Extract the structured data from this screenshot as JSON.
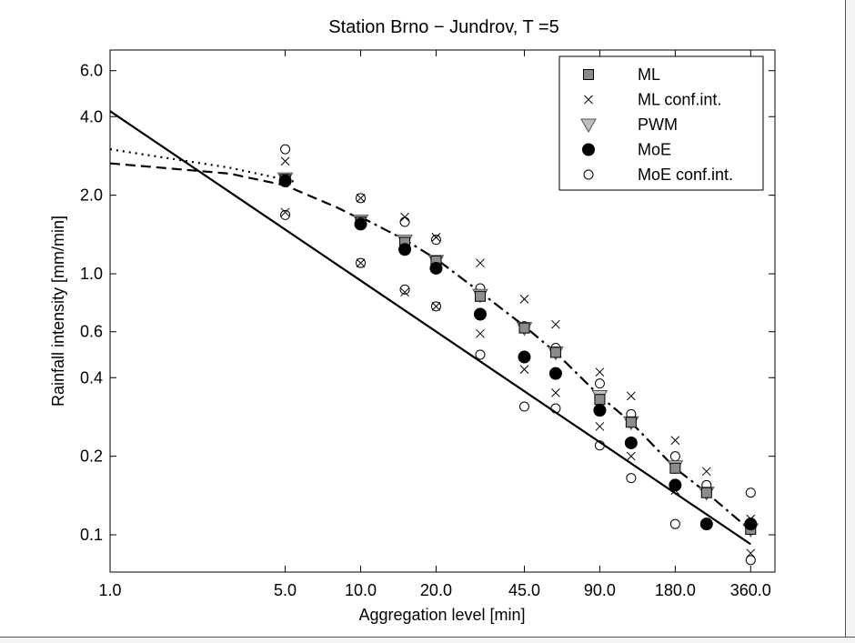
{
  "chart_data": {
    "type": "scatter",
    "title": "Station Brno − Jundrov,  T =5",
    "xlabel": "Aggregation level [min]",
    "ylabel": "Rainfall intensity [mm/min]",
    "x_scale": "log",
    "y_scale": "log",
    "xlim": [
      1.0,
      450.0
    ],
    "ylim": [
      0.072,
      7.2
    ],
    "x_ticks": [
      1,
      5,
      10,
      20,
      45,
      90,
      180,
      360
    ],
    "x_tick_labels": [
      "1.0",
      "5.0",
      "10.0",
      "20.0",
      "45.0",
      "90.0",
      "180.0",
      "360.0"
    ],
    "y_ticks": [
      0.1,
      0.2,
      0.4,
      0.6,
      1.0,
      2.0,
      4.0,
      6.0
    ],
    "y_tick_labels": [
      "0.1",
      "0.2",
      "0.4",
      "0.6",
      "1.0",
      "2.0",
      "4.0",
      "6.0"
    ],
    "grid": false,
    "legend_position": "top-right",
    "series": [
      {
        "name": "ML",
        "marker": "square",
        "color": "#8c8c8c",
        "x": [
          5,
          10,
          15,
          20,
          30,
          45,
          60,
          90,
          120,
          180,
          240,
          360
        ],
        "y": [
          2.3,
          1.58,
          1.32,
          1.12,
          0.82,
          0.62,
          0.5,
          0.33,
          0.27,
          0.18,
          0.145,
          0.105
        ]
      },
      {
        "name": "ML conf.int.",
        "marker": "x",
        "color": "#000000",
        "x": [
          5,
          5,
          10,
          10,
          15,
          15,
          20,
          20,
          30,
          30,
          45,
          45,
          60,
          60,
          90,
          90,
          120,
          120,
          180,
          180,
          240,
          240,
          360,
          360
        ],
        "y": [
          2.7,
          1.72,
          1.95,
          1.1,
          1.65,
          0.85,
          1.38,
          0.75,
          1.1,
          0.59,
          0.8,
          0.43,
          0.64,
          0.35,
          0.42,
          0.26,
          0.34,
          0.2,
          0.23,
          0.148,
          0.175,
          0.145,
          0.115,
          0.085
        ]
      },
      {
        "name": "PWM",
        "marker": "triangle-down",
        "color": "#bfbfbf",
        "x": [
          5,
          10,
          15,
          20,
          30,
          45,
          60,
          90,
          120,
          180,
          240,
          360
        ],
        "y": [
          2.32,
          1.6,
          1.34,
          1.12,
          0.83,
          0.62,
          0.5,
          0.34,
          0.27,
          0.183,
          0.145,
          0.105
        ]
      },
      {
        "name": "MoE",
        "marker": "filled-circle",
        "color": "#000000",
        "x": [
          5,
          10,
          15,
          20,
          30,
          45,
          60,
          90,
          120,
          180,
          240,
          360
        ],
        "y": [
          2.27,
          1.55,
          1.24,
          1.05,
          0.7,
          0.48,
          0.415,
          0.3,
          0.225,
          0.155,
          0.11,
          0.11
        ]
      },
      {
        "name": "MoE conf.int.",
        "marker": "open-circle",
        "color": "#000000",
        "x": [
          5,
          5,
          10,
          10,
          15,
          15,
          20,
          20,
          30,
          30,
          45,
          45,
          60,
          60,
          90,
          90,
          120,
          120,
          180,
          180,
          240,
          240,
          360,
          360
        ],
        "y": [
          3.0,
          1.68,
          1.95,
          1.1,
          1.58,
          0.87,
          1.35,
          0.75,
          0.88,
          0.49,
          0.63,
          0.31,
          0.52,
          0.305,
          0.38,
          0.22,
          0.29,
          0.165,
          0.2,
          0.11,
          0.155,
          0.11,
          0.145,
          0.08
        ]
      }
    ],
    "lines": [
      {
        "style": "solid",
        "x": [
          1,
          360
        ],
        "y": [
          4.2,
          0.092
        ]
      },
      {
        "style": "dotted",
        "x": [
          1,
          3,
          5.5
        ],
        "y": [
          3.0,
          2.55,
          2.25
        ]
      },
      {
        "style": "dashed",
        "x": [
          1,
          3,
          5,
          8,
          10
        ],
        "y": [
          2.65,
          2.42,
          2.18,
          1.8,
          1.62
        ]
      },
      {
        "style": "dash-dot",
        "x": [
          10,
          15,
          20,
          30,
          45,
          60,
          90,
          120,
          180,
          240,
          360
        ],
        "y": [
          1.65,
          1.35,
          1.14,
          0.85,
          0.63,
          0.5,
          0.34,
          0.27,
          0.18,
          0.145,
          0.104
        ]
      }
    ]
  }
}
